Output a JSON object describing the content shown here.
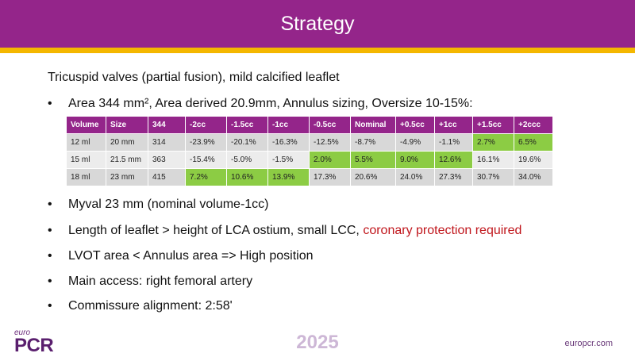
{
  "slide": {
    "title": "Strategy"
  },
  "subtitle": "Tricuspid valves (partial fusion), mild calcified leaflet",
  "bullet_glyph": "•",
  "bullets": [
    "Area 344 mm²,  Area derived 20.9mm, Annulus sizing,  Oversize 10-15%:",
    "Myval 23 mm (nominal volume-1cc)",
    "Length of leaflet > height of LCA ostium, small LCC,",
    "LVOT area < Annulus area => High position",
    "Main access: right femoral artery",
    "Commissure alignment: 2:58'"
  ],
  "bullet_red": " coronary protection required",
  "table": {
    "headers": [
      "Volume",
      "Size",
      "344",
      "-2cc",
      "-1.5cc",
      "-1cc",
      "-0.5cc",
      "Nominal",
      "+0.5cc",
      "+1cc",
      "+1.5cc",
      "+2ccc"
    ],
    "rows": [
      [
        "12 ml",
        "20 mm",
        "314",
        "-23.9%",
        "-20.1%",
        "-16.3%",
        "-12.5%",
        "-8.7%",
        "-4.9%",
        "-1.1%",
        "2.7%",
        "6.5%"
      ],
      [
        "15 ml",
        "21.5 mm",
        "363",
        "-15.4%",
        "-5.0%",
        "-1.5%",
        "2.0%",
        "5.5%",
        "9.0%",
        "12.6%",
        "16.1%",
        "19.6%"
      ],
      [
        "18 ml",
        "23 mm",
        "415",
        "7.2%",
        "10.6%",
        "13.9%",
        "17.3%",
        "20.6%",
        "24.0%",
        "27.3%",
        "30.7%",
        "34.0%"
      ]
    ]
  },
  "footer": {
    "logo_small": "euro",
    "logo_big": "PCR",
    "year": "2025",
    "url": "europcr.com"
  }
}
